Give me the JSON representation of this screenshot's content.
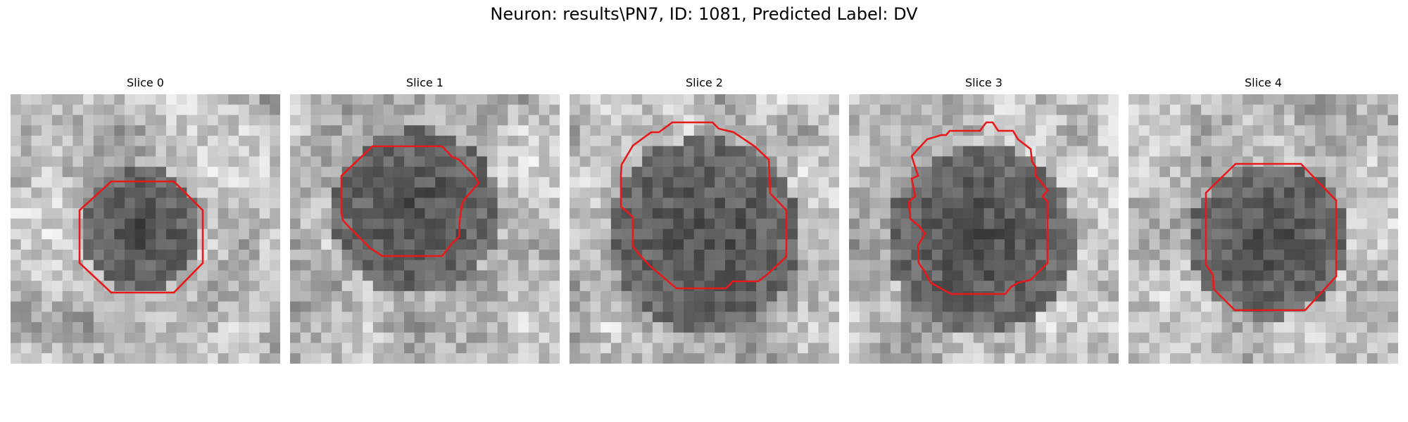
{
  "figure": {
    "title": "Neuron: results\\PN7, ID: 1081, Predicted Label: DV"
  },
  "panels": [
    {
      "title": "Slice 0",
      "image": "grayscale microscopy patch with red neuron boundary contour"
    },
    {
      "title": "Slice 1",
      "image": "grayscale microscopy patch with red neuron boundary contour"
    },
    {
      "title": "Slice 2",
      "image": "grayscale microscopy patch with red neuron boundary contour"
    },
    {
      "title": "Slice 3",
      "image": "grayscale microscopy patch with red neuron boundary contour"
    },
    {
      "title": "Slice 4",
      "image": "grayscale microscopy patch with red neuron boundary contour"
    }
  ],
  "colors": {
    "contour": "#e8191b"
  }
}
